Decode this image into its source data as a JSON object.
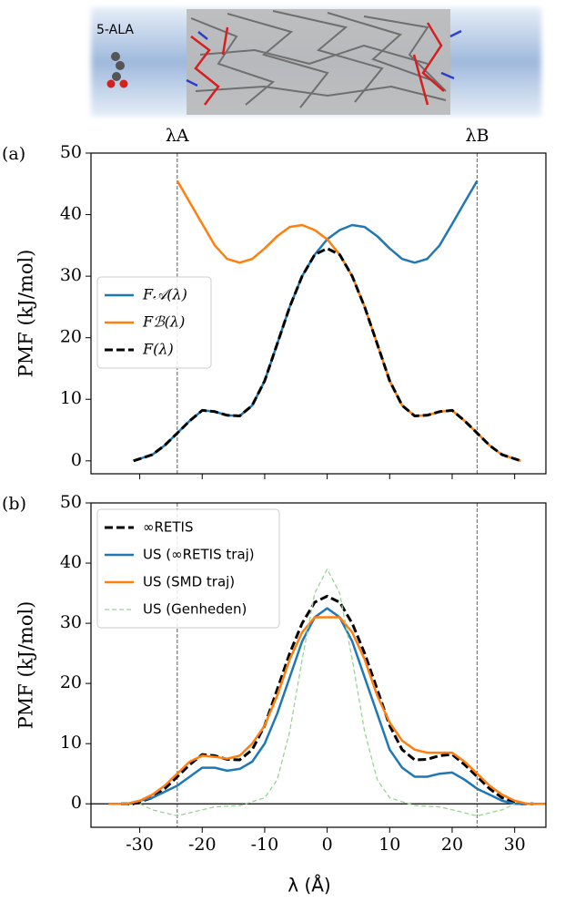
{
  "image": {
    "label": "5-ALA"
  },
  "chart_data": [
    {
      "type": "line",
      "panel_label": "(a)",
      "y_label": "PMF (kJ/mol)",
      "xlim": [
        -37.8,
        35
      ],
      "ylim": [
        -2.1,
        50
      ],
      "xticks": [
        -30,
        -20,
        -10,
        0,
        10,
        20,
        30
      ],
      "xtick_labels": false,
      "yticks": [
        0,
        10,
        20,
        30,
        40,
        50
      ],
      "vlines": [
        {
          "value": -24,
          "label": "λA"
        },
        {
          "value": 24,
          "label": "λB"
        }
      ],
      "legend": "center left",
      "series": [
        {
          "name": "F𝒜(λ)",
          "color": "#1f77b4",
          "linestyle": "solid",
          "x": [
            -31,
            -28,
            -26,
            -24,
            -22,
            -20,
            -18,
            -16,
            -14,
            -12,
            -10,
            -8,
            -6,
            -4,
            -2,
            0,
            2,
            4,
            6,
            8,
            10,
            12,
            14,
            16,
            18,
            20,
            22,
            24
          ],
          "values": [
            0,
            1,
            2.5,
            4.5,
            6.5,
            8.2,
            8,
            7.4,
            7.3,
            9,
            13,
            19,
            25,
            30,
            33.5,
            36,
            37.5,
            38.3,
            38,
            36.5,
            34.5,
            32.8,
            32.2,
            32.8,
            35,
            38.5,
            42,
            45.5
          ]
        },
        {
          "name": "Fℬ(λ)",
          "color": "#ff7f0e",
          "linestyle": "solid",
          "x": [
            -24,
            -22,
            -20,
            -18,
            -16,
            -14,
            -12,
            -10,
            -8,
            -6,
            -4,
            -2,
            0,
            2,
            4,
            6,
            8,
            10,
            12,
            14,
            16,
            18,
            20,
            22,
            24,
            26,
            28,
            31
          ],
          "values": [
            45.5,
            42,
            38.5,
            35,
            32.8,
            32.2,
            32.8,
            34.5,
            36.5,
            38,
            38.3,
            37.5,
            36,
            33.5,
            30,
            25,
            19,
            13,
            9,
            7.3,
            7.4,
            8,
            8.2,
            6.5,
            4.5,
            2.5,
            1,
            0
          ]
        },
        {
          "name": "F(λ)",
          "color": "#000000",
          "linestyle": "dashed",
          "x": [
            -31,
            -28,
            -26,
            -24,
            -22,
            -20,
            -18,
            -16,
            -14,
            -12,
            -10,
            -8,
            -6,
            -4,
            -2,
            0,
            2,
            4,
            6,
            8,
            10,
            12,
            14,
            16,
            18,
            20,
            22,
            24,
            26,
            28,
            31
          ],
          "values": [
            0,
            1,
            2.5,
            4.5,
            6.5,
            8.2,
            8,
            7.4,
            7.3,
            9,
            13,
            19,
            25,
            30,
            33.5,
            34.5,
            33.5,
            30,
            25,
            19,
            13,
            9,
            7.3,
            7.4,
            8,
            8.2,
            6.5,
            4.5,
            2.5,
            1,
            0
          ]
        }
      ]
    },
    {
      "type": "line",
      "panel_label": "(b)",
      "y_label": "PMF (kJ/mol)",
      "x_label": "λ (Å)",
      "xlim": [
        -37.8,
        35
      ],
      "ylim": [
        -3.9,
        50
      ],
      "xticks": [
        -30,
        -20,
        -10,
        0,
        10,
        20,
        30
      ],
      "xtick_labels": true,
      "yticks": [
        0,
        10,
        20,
        30,
        40,
        50
      ],
      "vlines": [
        {
          "value": -24
        },
        {
          "value": 24
        }
      ],
      "hlines": [
        0
      ],
      "legend": "upper left",
      "series": [
        {
          "name": "∞RETIS",
          "color": "#000000",
          "linestyle": "dashed",
          "x": [
            -33,
            -31,
            -28,
            -26,
            -24,
            -22,
            -20,
            -18,
            -16,
            -14,
            -12,
            -10,
            -8,
            -6,
            -4,
            -2,
            0,
            2,
            4,
            6,
            8,
            10,
            12,
            14,
            16,
            18,
            20,
            22,
            24,
            26,
            28,
            31,
            33
          ],
          "values": [
            0,
            0,
            1,
            2.5,
            4.5,
            6.5,
            8.2,
            8,
            7.4,
            7.3,
            9,
            13,
            19,
            25,
            30,
            33.5,
            34.5,
            33.5,
            30,
            25,
            19,
            13,
            9,
            7.3,
            7.4,
            8,
            8.2,
            6.5,
            4.5,
            2.5,
            1,
            0,
            0
          ]
        },
        {
          "name": "US (∞RETIS traj)",
          "color": "#1f77b4",
          "linestyle": "solid",
          "x": [
            -35,
            -32,
            -30,
            -28,
            -26,
            -24,
            -22,
            -20,
            -18,
            -16,
            -14,
            -12,
            -10,
            -8,
            -6,
            -4,
            -2,
            0,
            2,
            4,
            6,
            8,
            10,
            12,
            14,
            16,
            18,
            20,
            22,
            24,
            26,
            28,
            30,
            32,
            35
          ],
          "values": [
            0,
            0,
            0.5,
            1,
            2,
            3,
            4.5,
            6,
            6,
            5.5,
            5.8,
            7,
            10,
            15,
            21,
            27,
            31,
            32.5,
            31,
            27,
            21,
            15,
            9,
            6,
            4.5,
            4.5,
            5,
            5.2,
            4,
            2.5,
            1.5,
            0.5,
            0,
            0,
            0
          ]
        },
        {
          "name": "US (SMD traj)",
          "color": "#ff7f0e",
          "linestyle": "solid",
          "x": [
            -35,
            -32,
            -30,
            -28,
            -26,
            -24,
            -22,
            -20,
            -18,
            -16,
            -14,
            -12,
            -10,
            -8,
            -6,
            -4,
            -2,
            0,
            2,
            4,
            6,
            8,
            10,
            12,
            14,
            16,
            18,
            20,
            22,
            24,
            26,
            28,
            30,
            32,
            35
          ],
          "values": [
            0,
            0,
            0.5,
            1.5,
            3,
            5,
            7,
            8,
            7.8,
            7.5,
            8,
            10,
            13,
            18,
            24,
            28.5,
            31,
            31,
            31,
            28.5,
            24,
            18,
            13.5,
            10.5,
            9,
            8.5,
            8.5,
            8.5,
            7,
            5,
            3,
            1.5,
            0.5,
            0,
            0
          ]
        },
        {
          "name": "US (Genheden)",
          "color": "#98d594",
          "linestyle": "dashed-thin",
          "x": [
            -30,
            -28,
            -26,
            -24,
            -22,
            -20,
            -18,
            -14,
            -10,
            -8,
            -6,
            -4,
            -2,
            0,
            2,
            4,
            6,
            8,
            10,
            14,
            18,
            20,
            22,
            24,
            26,
            28,
            30
          ],
          "values": [
            0,
            -1,
            -1.5,
            -2,
            -1.5,
            -1,
            -0.5,
            -0.3,
            1,
            4,
            12,
            24,
            35,
            39,
            35,
            24,
            12,
            4,
            1,
            -0.3,
            -0.5,
            -1,
            -1.5,
            -2,
            -1.5,
            -1,
            0
          ]
        }
      ]
    }
  ]
}
